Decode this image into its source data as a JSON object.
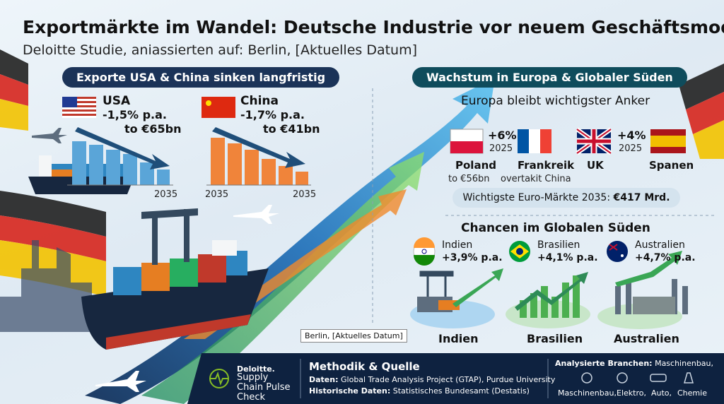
{
  "header": {
    "title": "Exportmärkte im Wandel: Deutsche Industrie vor neuem Geschäftsmodell",
    "subtitle": "Deloitte Studie, aniassierten auf: Berlin, [Aktuelles Datum]"
  },
  "left": {
    "banner": "Exporte USA & China sinken langfristig",
    "usa": {
      "name": "USA",
      "rate": "-1,5% p.a.",
      "target": "to €65bn",
      "year": "2035"
    },
    "china": {
      "name": "China",
      "rate": "-1,7% p.a.",
      "target": "to €41bn",
      "year_start": "2035",
      "year_end": "2035"
    }
  },
  "right": {
    "banner": "Wachstum in Europa & Globaler Süden",
    "europe": {
      "heading": "Europa bleibt wichtigster Anker",
      "poland": {
        "growth": "+6%",
        "year": "2025",
        "name": "Poland",
        "note": "to €56bn"
      },
      "france": {
        "name": "Frankreik",
        "note": "overtakit China"
      },
      "uk": {
        "name": "UK",
        "growth": "+4%",
        "year": "2025"
      },
      "spain": {
        "name": "Spanen"
      },
      "summary_label": "Wichtigste Euro-Märkte 2035:",
      "summary_value": "€417 Mrd."
    },
    "south": {
      "heading": "Chancen im Globalen Süden",
      "markets": [
        {
          "name": "Indien",
          "rate": "+3,9% p.a.",
          "caption": "Indien"
        },
        {
          "name": "Brasilien",
          "rate": "+4,1% p.a.",
          "caption": "Brasilien"
        },
        {
          "name": "Australien",
          "rate": "+4,7% p.a.",
          "caption": "Australien"
        }
      ]
    }
  },
  "location_tag": "Berlin, [Aktuelles Datum]",
  "footer": {
    "brand": "Deloitte.",
    "product": "Supply Chain Pulse Check",
    "method_heading": "Methodik & Quelle",
    "data_label": "Daten:",
    "data_source": "Global Trade Analysis Project (GTAP), Purdue University",
    "history_label": "Historische Daten:",
    "history_source": "Statistisches Bundesamt (Destatis)",
    "sectors_label": "Analysierte Branchen:",
    "sectors_first": "Maschinenbau,",
    "sectors": [
      "Maschinenbau,",
      "Elektro,",
      "Auto,",
      "Chemie"
    ]
  }
}
